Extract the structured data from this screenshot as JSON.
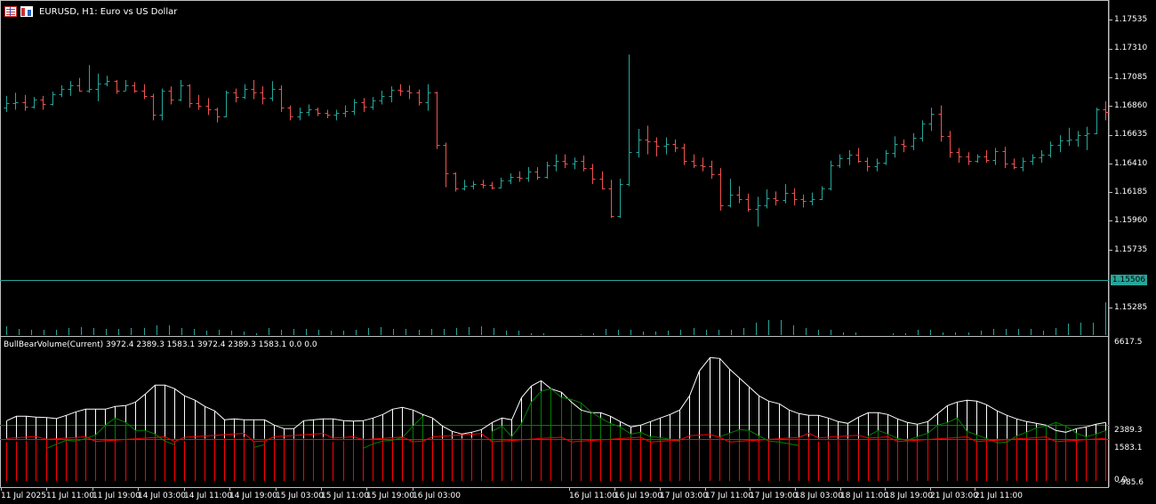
{
  "window": {
    "symbol_title": "EURUSD, H1:  Euro vs US Dollar",
    "icons": [
      "list-icon",
      "chart-icon"
    ]
  },
  "colors": {
    "background": "#000000",
    "bull_bar": "#26a69a",
    "bear_bar": "#ef5350",
    "grid_axis": "#c0c0c0",
    "price_line": "#26a69a",
    "indicator_total": "#ffffff",
    "indicator_bull": "#008000",
    "indicator_bear": "#ff0000",
    "level_upper": "#008000",
    "level_lower": "#ff0000"
  },
  "price_axis": {
    "labels": [
      "1.17535",
      "1.17310",
      "1.17085",
      "1.16860",
      "1.16635",
      "1.16410",
      "1.16185",
      "1.15960",
      "1.15735",
      "1.15285"
    ],
    "current_price": "1.15506"
  },
  "indicator": {
    "label": "BullBearVolume(Current) 3972.4 2389.3 1583.1 3972.4 2389.3 1583.1 0.0 0.0",
    "axis_labels": {
      "max": "6617.5",
      "upper_level": "2389.3",
      "lower_level": "1583.1",
      "min": "-985.6",
      "zero": "0.0"
    }
  },
  "time_axis": {
    "labels": [
      "11 Jul 2025",
      "11 Jul 11:00",
      "11 Jul 19:00",
      "14 Jul 03:00",
      "14 Jul 11:00",
      "14 Jul 19:00",
      "15 Jul 03:00",
      "15 Jul 11:00",
      "15 Jul 19:00",
      "16 Jul 03:00",
      "16 Jul 11:00",
      "16 Jul 19:00",
      "17 Jul 03:00",
      "17 Jul 11:00",
      "17 Jul 19:00",
      "18 Jul 03:00",
      "18 Jul 11:00",
      "18 Jul 19:00",
      "21 Jul 03:00",
      "21 Jul 11:00"
    ]
  },
  "chart_data": {
    "type": "ohlc",
    "symbol": "EURUSD",
    "timeframe": "H1",
    "ylim": [
      1.1518,
      1.1765
    ],
    "bars": [
      [
        1.1672,
        1.1683,
        1.1668,
        1.1676
      ],
      [
        1.1676,
        1.1686,
        1.167,
        1.1677
      ],
      [
        1.1677,
        1.1684,
        1.1669,
        1.1673
      ],
      [
        1.1673,
        1.1682,
        1.1671,
        1.168
      ],
      [
        1.168,
        1.1683,
        1.167,
        1.1675
      ],
      [
        1.1675,
        1.1687,
        1.1674,
        1.1685
      ],
      [
        1.1685,
        1.1693,
        1.1682,
        1.169
      ],
      [
        1.169,
        1.1697,
        1.1683,
        1.1693
      ],
      [
        1.1693,
        1.17,
        1.1687,
        1.1688
      ],
      [
        1.1688,
        1.1712,
        1.1686,
        1.169
      ],
      [
        1.169,
        1.1704,
        1.1678,
        1.1695
      ],
      [
        1.1695,
        1.1702,
        1.1692,
        1.1697
      ],
      [
        1.1697,
        1.1698,
        1.1685,
        1.1688
      ],
      [
        1.1688,
        1.1698,
        1.1688,
        1.1693
      ],
      [
        1.1693,
        1.1696,
        1.1686,
        1.1688
      ],
      [
        1.1688,
        1.1694,
        1.168,
        1.1683
      ],
      [
        1.1683,
        1.1685,
        1.166,
        1.1665
      ],
      [
        1.1665,
        1.169,
        1.166,
        1.1688
      ],
      [
        1.1688,
        1.1692,
        1.1675,
        1.168
      ],
      [
        1.168,
        1.1698,
        1.1678,
        1.1693
      ],
      [
        1.1693,
        1.1694,
        1.1672,
        1.1676
      ],
      [
        1.1676,
        1.1684,
        1.167,
        1.1674
      ],
      [
        1.1674,
        1.1681,
        1.1665,
        1.167
      ],
      [
        1.167,
        1.1672,
        1.1658,
        1.1664
      ],
      [
        1.1664,
        1.1688,
        1.1663,
        1.1686
      ],
      [
        1.1686,
        1.169,
        1.1677,
        1.1682
      ],
      [
        1.1682,
        1.1694,
        1.168,
        1.169
      ],
      [
        1.169,
        1.1698,
        1.168,
        1.1686
      ],
      [
        1.1686,
        1.1692,
        1.1675,
        1.1681
      ],
      [
        1.1681,
        1.1697,
        1.1678,
        1.169
      ],
      [
        1.169,
        1.1693,
        1.1668,
        1.1672
      ],
      [
        1.1672,
        1.1674,
        1.166,
        1.1664
      ],
      [
        1.1664,
        1.1672,
        1.166,
        1.1668
      ],
      [
        1.1668,
        1.1675,
        1.1664,
        1.167
      ],
      [
        1.167,
        1.1672,
        1.1664,
        1.1667
      ],
      [
        1.1667,
        1.167,
        1.1662,
        1.1665
      ],
      [
        1.1665,
        1.167,
        1.166,
        1.1667
      ],
      [
        1.1667,
        1.1674,
        1.1663,
        1.1669
      ],
      [
        1.1669,
        1.168,
        1.1665,
        1.1677
      ],
      [
        1.1677,
        1.1681,
        1.1668,
        1.1673
      ],
      [
        1.1673,
        1.1682,
        1.167,
        1.1679
      ],
      [
        1.1679,
        1.1688,
        1.1675,
        1.1683
      ],
      [
        1.1683,
        1.1692,
        1.1677,
        1.1689
      ],
      [
        1.1689,
        1.1694,
        1.1683,
        1.1688
      ],
      [
        1.1688,
        1.1693,
        1.168,
        1.1686
      ],
      [
        1.1686,
        1.1689,
        1.1674,
        1.1677
      ],
      [
        1.1677,
        1.1694,
        1.1669,
        1.1686
      ],
      [
        1.1686,
        1.1687,
        1.1633,
        1.1637
      ],
      [
        1.1637,
        1.1639,
        1.1597,
        1.161
      ],
      [
        1.161,
        1.1611,
        1.1593,
        1.1596
      ],
      [
        1.1596,
        1.1604,
        1.1594,
        1.1598
      ],
      [
        1.1598,
        1.1603,
        1.1595,
        1.16
      ],
      [
        1.16,
        1.1604,
        1.1596,
        1.1599
      ],
      [
        1.1599,
        1.1602,
        1.1595,
        1.1597
      ],
      [
        1.1597,
        1.1606,
        1.1596,
        1.1603
      ],
      [
        1.1603,
        1.161,
        1.16,
        1.1607
      ],
      [
        1.1607,
        1.1612,
        1.1602,
        1.1606
      ],
      [
        1.1606,
        1.1616,
        1.1602,
        1.1612
      ],
      [
        1.1612,
        1.1616,
        1.1604,
        1.1607
      ],
      [
        1.1607,
        1.1621,
        1.1605,
        1.1618
      ],
      [
        1.1618,
        1.1628,
        1.1612,
        1.1622
      ],
      [
        1.1622,
        1.1628,
        1.1615,
        1.1619
      ],
      [
        1.1619,
        1.1625,
        1.1614,
        1.1622
      ],
      [
        1.1622,
        1.1627,
        1.1612,
        1.1615
      ],
      [
        1.1615,
        1.1619,
        1.16,
        1.1605
      ],
      [
        1.1605,
        1.1612,
        1.1595,
        1.1596
      ],
      [
        1.1596,
        1.1604,
        1.1568,
        1.157
      ],
      [
        1.157,
        1.1605,
        1.1568,
        1.16
      ],
      [
        1.16,
        1.1722,
        1.1598,
        1.163
      ],
      [
        1.163,
        1.1652,
        1.1625,
        1.1642
      ],
      [
        1.1642,
        1.1655,
        1.1628,
        1.164
      ],
      [
        1.164,
        1.1644,
        1.1626,
        1.1636
      ],
      [
        1.1636,
        1.1644,
        1.1628,
        1.1638
      ],
      [
        1.1638,
        1.1642,
        1.163,
        1.1634
      ],
      [
        1.1634,
        1.1638,
        1.1618,
        1.1622
      ],
      [
        1.1622,
        1.1628,
        1.1615,
        1.1618
      ],
      [
        1.1618,
        1.1625,
        1.1612,
        1.1617
      ],
      [
        1.1617,
        1.1622,
        1.1605,
        1.1609
      ],
      [
        1.1609,
        1.1615,
        1.1575,
        1.158
      ],
      [
        1.158,
        1.1605,
        1.1578,
        1.159
      ],
      [
        1.159,
        1.1598,
        1.1582,
        1.1586
      ],
      [
        1.1586,
        1.1591,
        1.1574,
        1.1577
      ],
      [
        1.1577,
        1.1588,
        1.156,
        1.158
      ],
      [
        1.158,
        1.1595,
        1.1577,
        1.1587
      ],
      [
        1.1587,
        1.1593,
        1.158,
        1.1585
      ],
      [
        1.1585,
        1.16,
        1.1582,
        1.1592
      ],
      [
        1.1592,
        1.1596,
        1.158,
        1.1586
      ],
      [
        1.1586,
        1.159,
        1.1578,
        1.1584
      ],
      [
        1.1584,
        1.1592,
        1.158,
        1.1586
      ],
      [
        1.1586,
        1.1598,
        1.1585,
        1.1596
      ],
      [
        1.1596,
        1.1622,
        1.1594,
        1.1618
      ],
      [
        1.1618,
        1.1628,
        1.1615,
        1.1624
      ],
      [
        1.1624,
        1.1632,
        1.1618,
        1.1628
      ],
      [
        1.1628,
        1.1634,
        1.162,
        1.1622
      ],
      [
        1.1622,
        1.1625,
        1.1612,
        1.1617
      ],
      [
        1.1617,
        1.1624,
        1.1612,
        1.162
      ],
      [
        1.162,
        1.1632,
        1.1618,
        1.1629
      ],
      [
        1.1629,
        1.1645,
        1.1625,
        1.1638
      ],
      [
        1.1638,
        1.1642,
        1.163,
        1.1636
      ],
      [
        1.1636,
        1.1648,
        1.1632,
        1.1644
      ],
      [
        1.1644,
        1.166,
        1.164,
        1.1657
      ],
      [
        1.1657,
        1.1672,
        1.165,
        1.1666
      ],
      [
        1.1666,
        1.1674,
        1.164,
        1.1645
      ],
      [
        1.1645,
        1.165,
        1.1625,
        1.163
      ],
      [
        1.163,
        1.1634,
        1.162,
        1.1626
      ],
      [
        1.1626,
        1.163,
        1.1618,
        1.1622
      ],
      [
        1.1622,
        1.1628,
        1.162,
        1.1626
      ],
      [
        1.1626,
        1.1632,
        1.162,
        1.1623
      ],
      [
        1.1623,
        1.1634,
        1.1618,
        1.1631
      ],
      [
        1.1631,
        1.1635,
        1.1615,
        1.1619
      ],
      [
        1.1619,
        1.1624,
        1.1614,
        1.1616
      ],
      [
        1.1616,
        1.1625,
        1.1612,
        1.1622
      ],
      [
        1.1622,
        1.1628,
        1.1618,
        1.1625
      ],
      [
        1.1625,
        1.1632,
        1.162,
        1.1628
      ],
      [
        1.1628,
        1.164,
        1.1625,
        1.1637
      ],
      [
        1.1637,
        1.1646,
        1.163,
        1.1641
      ],
      [
        1.1641,
        1.1653,
        1.1636,
        1.1642
      ],
      [
        1.1642,
        1.165,
        1.1635,
        1.1646
      ],
      [
        1.1646,
        1.1654,
        1.1632,
        1.1648
      ],
      [
        1.1648,
        1.1672,
        1.1647,
        1.167
      ],
      [
        1.167,
        1.1678,
        1.166,
        1.1668
      ]
    ],
    "volume": [
      10,
      7,
      6,
      6,
      6,
      8,
      9,
      8,
      7,
      7,
      8,
      8,
      11,
      11,
      8,
      7,
      5,
      6,
      5,
      4,
      2,
      8,
      6,
      7,
      7,
      6,
      5,
      5,
      6,
      8,
      9,
      7,
      7,
      6,
      7,
      7,
      8,
      9,
      10,
      8,
      5,
      5,
      2,
      2,
      0,
      0,
      1,
      2,
      7,
      6,
      6,
      4,
      4,
      5,
      6,
      8,
      6,
      6,
      6,
      8,
      14,
      17,
      17,
      11,
      8,
      6,
      6,
      3,
      3,
      0,
      0,
      2,
      2,
      6,
      6,
      3,
      3,
      3,
      5,
      7,
      7,
      7,
      7,
      5,
      8,
      13,
      14,
      14,
      37
    ],
    "indicator": {
      "name": "BullBearVolume(Current)",
      "ylim": [
        -985.6,
        6617.5
      ],
      "levels": [
        2389.3,
        1583.1
      ],
      "total": [
        2600,
        2850,
        2850,
        2800,
        2780,
        2720,
        2900,
        3100,
        3250,
        3250,
        3250,
        3400,
        3450,
        3650,
        4100,
        4600,
        4600,
        4400,
        4000,
        3750,
        3400,
        3150,
        2650,
        2700,
        2650,
        2650,
        2650,
        2350,
        2150,
        2150,
        2600,
        2650,
        2700,
        2700,
        2600,
        2580,
        2600,
        2750,
        2950,
        3250,
        3350,
        3200,
        2950,
        2750,
        2300,
        2000,
        1850,
        1950,
        2100,
        2500,
        2750,
        2650,
        3900,
        4550,
        4850,
        4400,
        4200,
        3650,
        3200,
        3050,
        3050,
        2850,
        2550,
        2250,
        2350,
        2550,
        2750,
        2950,
        3200,
        4000,
        5400,
        6150,
        6100,
        5500,
        5000,
        4500,
        4000,
        3700,
        3550,
        3200,
        3000,
        2900,
        2900,
        2750,
        2550,
        2450,
        2800,
        3050,
        3050,
        2950,
        2700,
        2500,
        2400,
        2550,
        3000,
        3450,
        3650,
        3750,
        3700,
        3500,
        3150,
        2900,
        2700,
        2550,
        2450,
        2350,
        2050,
        1950,
        2150,
        2250,
        2400,
        2500
      ],
      "bull": [
        null,
        null,
        null,
        null,
        1050,
        1280,
        1500,
        1450,
        1600,
        1800,
        2350,
        2750,
        2500,
        2050,
        2050,
        1850,
        1450,
        1250,
        null,
        null,
        null,
        null,
        null,
        null,
        null,
        1100,
        1250,
        null,
        null,
        null,
        null,
        null,
        null,
        null,
        null,
        null,
        1050,
        1300,
        1450,
        1500,
        1650,
        2300,
        2850,
        null,
        null,
        null,
        null,
        null,
        null,
        2000,
        2300,
        1700,
        2450,
        3650,
        4250,
        4400,
        3900,
        3800,
        3600,
        3100,
        2750,
        2450,
        2250,
        1850,
        1950,
        1700,
        1650,
        1550,
        1450,
        null,
        null,
        null,
        1700,
        1900,
        2100,
        2050,
        1750,
        1450,
        1400,
        1300,
        1200,
        null,
        null,
        null,
        null,
        null,
        null,
        1750,
        2050,
        1850,
        1600,
        1500,
        1700,
        1900,
        2350,
        2500,
        2750,
        2000,
        1800,
        1600,
        1350,
        1400,
        1750,
        1950,
        2200,
        2300,
        2500,
        2300,
        1900,
        1700,
        1850,
        2050
      ]
    }
  }
}
